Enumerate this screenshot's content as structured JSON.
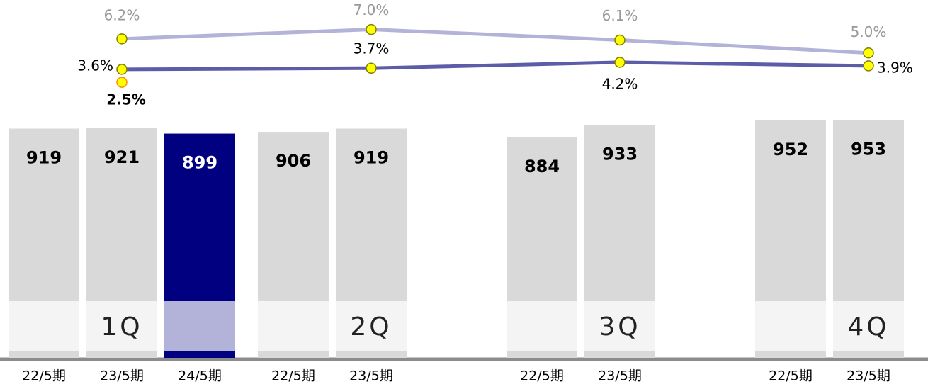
{
  "chart_data": {
    "type": "bar",
    "categories": [
      "22/5期",
      "23/5期",
      "24/5期",
      "22/5期",
      "23/5期",
      "22/5期",
      "23/5期",
      "22/5期",
      "23/5期"
    ],
    "values": [
      919,
      921,
      899,
      906,
      919,
      884,
      933,
      952,
      953
    ],
    "colors": [
      "#d9d9d9",
      "#d9d9d9",
      "#000080",
      "#d9d9d9",
      "#d9d9d9",
      "#d9d9d9",
      "#d9d9d9",
      "#d9d9d9",
      "#d9d9d9"
    ],
    "ylim": [
      0,
      1000
    ],
    "quarters": [
      "1Q",
      "2Q",
      "3Q",
      "4Q"
    ],
    "y2lim": [
      0,
      8
    ],
    "line_series": [
      {
        "color": "#b3b3d9",
        "axis": "y2",
        "values": [
          6.2,
          7.0,
          6.1,
          5.0
        ],
        "value_labels": [
          "6.2%",
          "7.0%",
          "6.1%",
          "5.0%"
        ]
      },
      {
        "color": "#5c5ca8",
        "axis": "y2",
        "values": [
          3.6,
          3.7,
          4.2,
          3.9
        ],
        "value_labels": [
          "3.6%",
          "3.7%",
          "4.2%",
          "3.9%"
        ]
      },
      {
        "color": "#ff8c00",
        "axis": "y2",
        "values": [
          2.5
        ],
        "value_labels": [
          "2.5%"
        ]
      }
    ]
  }
}
